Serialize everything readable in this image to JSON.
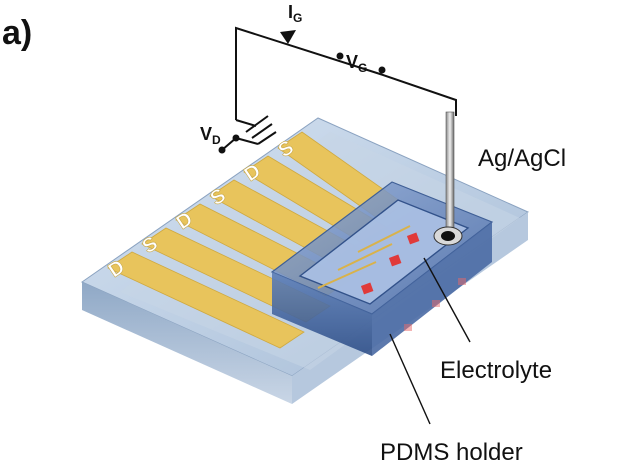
{
  "panel_label": "a)",
  "circuit": {
    "gate_current_label": "I",
    "gate_current_sub": "G",
    "gate_voltage_label": "V",
    "gate_voltage_sub": "G",
    "drain_voltage_label": "V",
    "drain_voltage_sub": "D"
  },
  "labels": {
    "reference_electrode": "Ag/AgCl",
    "electrolyte": "Electrolyte",
    "holder": "PDMS holder"
  },
  "pads": [
    "D",
    "S",
    "D",
    "S",
    "D",
    "S"
  ],
  "colors": {
    "substrate": "#a9bfd6",
    "gold": "#e8c45c",
    "pdms": "#6f8fc0",
    "channel_dot": "#e03a3a"
  }
}
